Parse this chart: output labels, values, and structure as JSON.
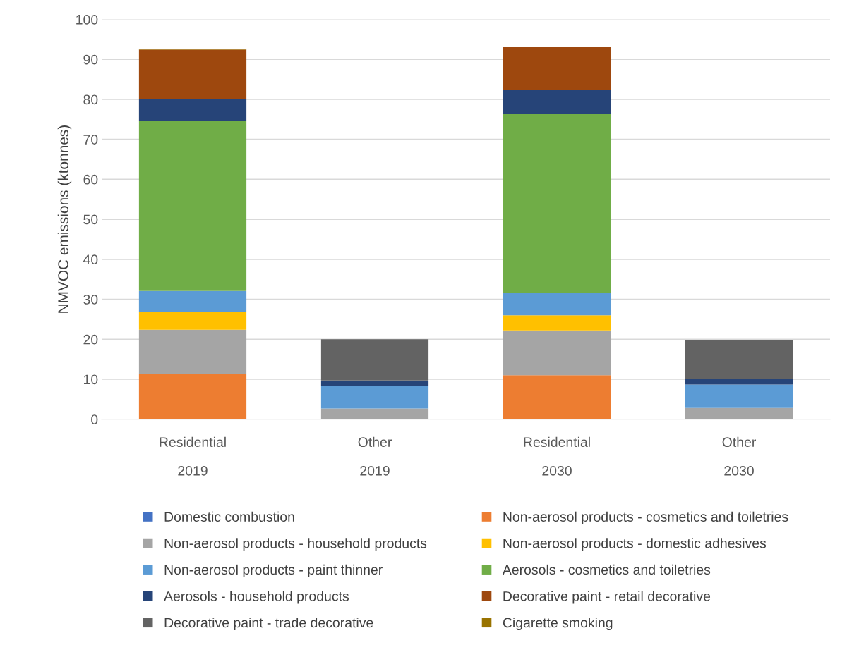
{
  "chart_data": {
    "type": "bar",
    "stacked": true,
    "ylabel": "NMVOC emissions (ktonnes)",
    "categories": [
      "Residential\n2019",
      "Other\n2019",
      "Residential\n2030",
      "Other\n2030"
    ],
    "ylim": [
      0,
      100
    ],
    "yticks": [
      0,
      10,
      20,
      30,
      40,
      50,
      60,
      70,
      80,
      90,
      100
    ],
    "grid": "y",
    "legend": "bottom",
    "series": [
      {
        "name": "Domestic combustion",
        "color": "#4472c4",
        "values": [
          null,
          null,
          null,
          null
        ]
      },
      {
        "name": "Non-aerosol products - cosmetics and toiletries",
        "color": "#ed7d31",
        "values": [
          11.3,
          null,
          11.0,
          null
        ]
      },
      {
        "name": "Non-aerosol products - household products",
        "color": "#a5a5a5",
        "values": [
          11.1,
          2.7,
          11.2,
          2.8
        ]
      },
      {
        "name": "Non-aerosol products - domestic adhesives",
        "color": "#ffc000",
        "values": [
          4.4,
          null,
          3.8,
          null
        ]
      },
      {
        "name": "Non-aerosol products - paint thinner",
        "color": "#5b9bd5",
        "values": [
          5.3,
          5.6,
          5.7,
          5.9
        ]
      },
      {
        "name": "Aerosols - cosmetics and toiletries",
        "color": "#70ad47",
        "values": [
          42.4,
          null,
          44.6,
          null
        ]
      },
      {
        "name": "Aerosols - household products",
        "color": "#264478",
        "values": [
          5.6,
          1.4,
          6.1,
          1.5
        ]
      },
      {
        "name": "Decorative paint - retail decorative",
        "color": "#9e480e",
        "values": [
          12.3,
          null,
          10.7,
          null
        ]
      },
      {
        "name": "Decorative paint - trade decorative",
        "color": "#636363",
        "values": [
          null,
          10.3,
          null,
          9.5
        ]
      },
      {
        "name": "Cigarette smoking",
        "color": "#997300",
        "values": [
          0.1,
          null,
          0.1,
          null
        ]
      }
    ]
  }
}
